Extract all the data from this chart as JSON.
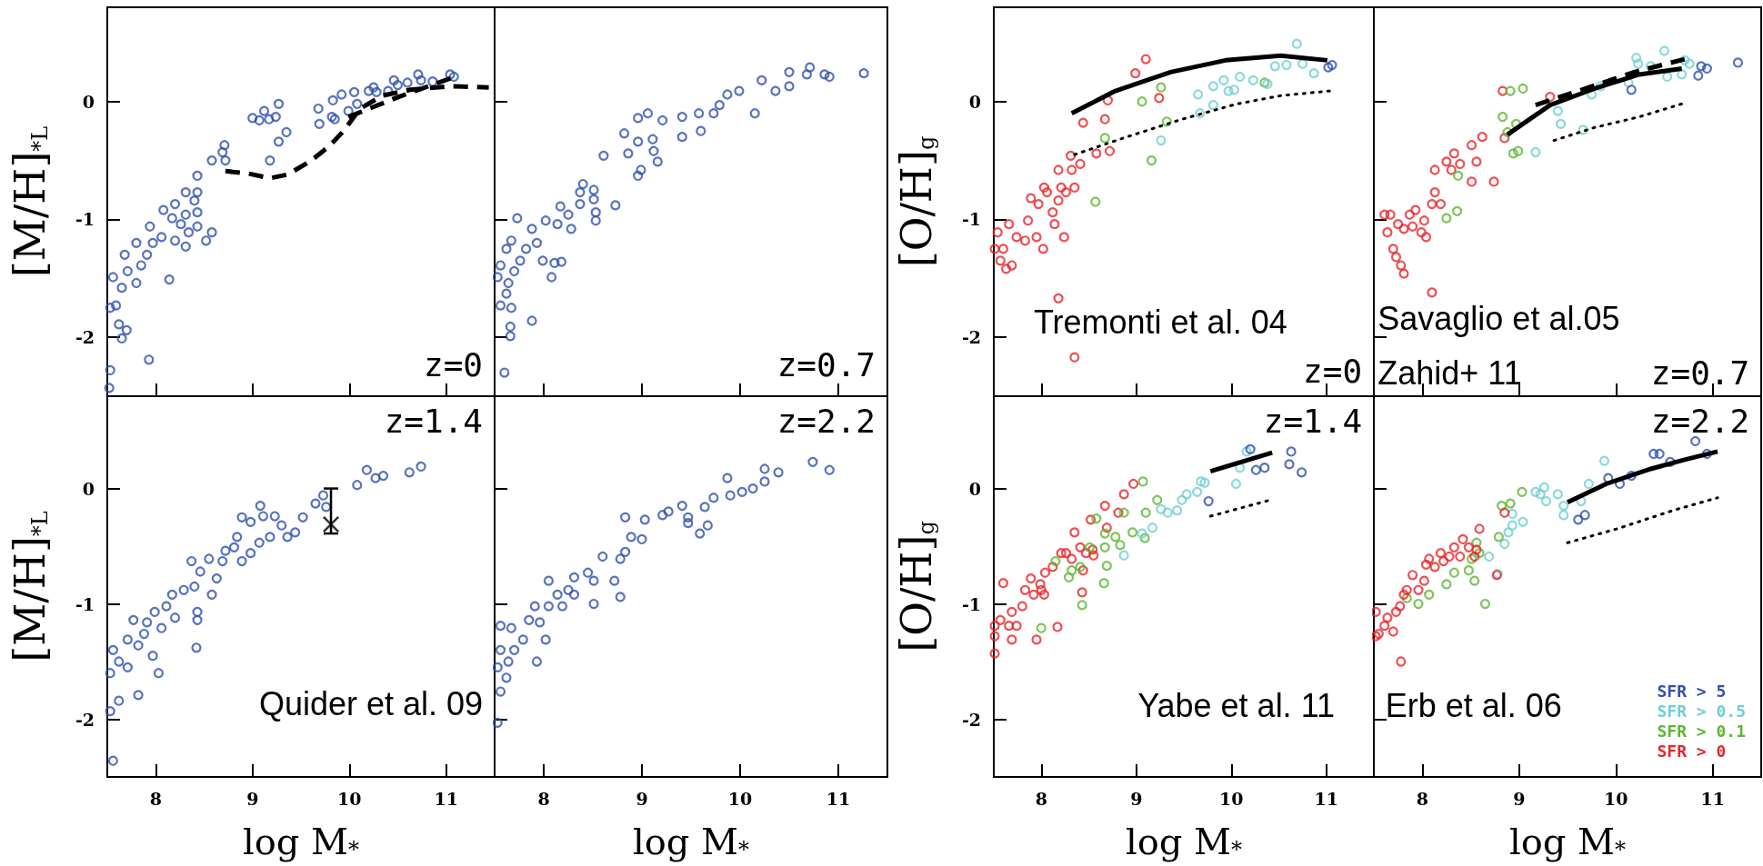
{
  "chart_data": [
    {
      "type": "scatter",
      "xlim": [
        7.5,
        11.5
      ],
      "ylim": [
        -2.5,
        0.8
      ],
      "xticks": [
        8,
        9,
        10,
        11
      ],
      "yticks": [
        -2,
        -1,
        0
      ],
      "tick_labels": "y",
      "marker": "circle",
      "ylabel": "[M/H]$_{*L}$",
      "annotations": [
        "z=0"
      ],
      "series": [
        {
          "type": "scatter",
          "color": "#3050b0",
          "x": [
            7.52,
            7.53,
            7.93,
            7.65,
            7.7,
            7.62,
            7.53,
            7.59,
            7.65,
            7.56,
            7.71,
            7.8,
            8.14,
            7.85,
            7.68,
            7.91,
            7.97,
            7.8,
            8.06,
            8.2,
            7.94,
            8.08,
            8.17,
            8.26,
            8.31,
            8.2,
            8.34,
            8.31,
            8.43,
            8.4,
            8.43,
            8.31,
            8.43,
            8.52,
            8.58,
            8.43,
            8.58,
            8.69,
            8.71,
            8.72,
            9.0,
            9.07,
            9.12,
            9.17,
            9.27,
            9.24,
            9.27,
            9.35,
            9.18,
            9.68,
            9.69,
            9.82,
            9.83,
            9.85,
            9.92,
            9.99,
            10.05,
            10.08,
            10.2,
            10.25,
            10.28,
            10.4,
            10.46,
            10.5,
            10.6,
            10.71,
            10.74,
            10.86,
            11.04,
            11.08
          ],
          "values": [
            -2.43,
            -2.28,
            -2.19,
            -2.01,
            -1.94,
            -1.89,
            -1.75,
            -1.73,
            -1.58,
            -1.49,
            -1.44,
            -1.54,
            -1.51,
            -1.39,
            -1.3,
            -1.3,
            -1.2,
            -1.2,
            -1.15,
            -1.18,
            -1.06,
            -0.92,
            -0.99,
            -1.04,
            -0.96,
            -0.87,
            -1.11,
            -1.23,
            -0.94,
            -0.84,
            -0.77,
            -0.77,
            -1.06,
            -1.18,
            -1.11,
            -0.63,
            -0.5,
            -0.43,
            -0.37,
            -0.5,
            -0.14,
            -0.16,
            -0.08,
            -0.15,
            -0.02,
            -0.13,
            -0.34,
            -0.26,
            -0.5,
            -0.06,
            -0.19,
            -0.13,
            0.01,
            -0.15,
            0.06,
            -0.08,
            0.08,
            -0.02,
            0.09,
            0.12,
            0.08,
            0.09,
            0.18,
            0.14,
            0.16,
            0.23,
            0.18,
            0.17,
            0.23,
            0.21
          ]
        },
        {
          "type": "line",
          "color": "#000000",
          "marker": "none",
          "line_style": "dashed",
          "x": [
            8.72,
            8.95,
            9.18,
            9.36,
            9.59,
            9.79,
            9.94,
            10.11,
            10.34,
            10.63,
            11.04,
            11.44
          ],
          "values": [
            -0.59,
            -0.61,
            -0.65,
            -0.62,
            -0.51,
            -0.38,
            -0.25,
            -0.06,
            0.05,
            0.1,
            0.13,
            0.12
          ]
        },
        {
          "type": "line",
          "color": "#000000",
          "marker": "none",
          "line_style": "dashed",
          "x": [
            9.99,
            10.51,
            11.09
          ],
          "values": [
            -0.13,
            0.04,
            0.21
          ]
        }
      ]
    },
    {
      "type": "scatter",
      "xlim": [
        7.5,
        11.5
      ],
      "ylim": [
        -2.5,
        0.8
      ],
      "xticks": [
        8,
        9,
        10,
        11
      ],
      "yticks": [
        -2,
        -1,
        0
      ],
      "tick_labels": false,
      "marker": "circle",
      "annotations": [
        "z=0.7"
      ],
      "series": [
        {
          "type": "scatter",
          "color": "#3050b0",
          "x": [
            7.6,
            7.66,
            7.66,
            7.88,
            7.56,
            7.62,
            7.67,
            7.53,
            7.56,
            7.64,
            7.7,
            7.76,
            7.62,
            7.67,
            7.82,
            7.73,
            7.88,
            7.93,
            7.99,
            8.08,
            8.11,
            8.18,
            8.02,
            8.14,
            8.17,
            8.25,
            8.28,
            8.37,
            8.4,
            8.37,
            8.51,
            8.51,
            8.53,
            8.53,
            8.61,
            8.73,
            8.82,
            8.86,
            8.96,
            8.96,
            8.96,
            8.99,
            9.11,
            9.12,
            9.16,
            9.06,
            9.21,
            9.41,
            9.41,
            9.58,
            9.6,
            9.73,
            9.79,
            9.87,
            9.99,
            10.15,
            10.22,
            10.36,
            10.5,
            10.5,
            10.68,
            10.71,
            10.86,
            10.91,
            11.26
          ],
          "values": [
            -2.3,
            -1.99,
            -1.91,
            -1.86,
            -1.73,
            -1.63,
            -1.75,
            -1.49,
            -1.39,
            -1.54,
            -1.44,
            -1.35,
            -1.25,
            -1.18,
            -1.25,
            -0.99,
            -1.08,
            -1.2,
            -1.35,
            -1.49,
            -1.37,
            -1.36,
            -1.01,
            -1.04,
            -0.89,
            -0.96,
            -1.08,
            -0.77,
            -0.7,
            -0.87,
            -0.75,
            -0.83,
            -0.94,
            -1.01,
            -0.46,
            -0.88,
            -0.27,
            -0.44,
            -0.34,
            -0.14,
            -0.63,
            -0.58,
            -0.32,
            -0.42,
            -0.51,
            -0.1,
            -0.16,
            -0.13,
            -0.3,
            -0.1,
            -0.25,
            -0.1,
            -0.03,
            0.06,
            0.09,
            -0.1,
            0.18,
            0.09,
            0.13,
            0.25,
            0.23,
            0.29,
            0.23,
            0.21,
            0.24
          ]
        }
      ]
    },
    {
      "type": "scatter",
      "xlim": [
        7.5,
        11.5
      ],
      "ylim": [
        -2.5,
        0.8
      ],
      "xticks": [
        8,
        9,
        10,
        11
      ],
      "yticks": [
        -2,
        -1,
        0
      ],
      "tick_labels": "y",
      "marker": "circle",
      "ylabel": "[O/H]$_{g}$",
      "annotations": [
        "Tremonti et al. 04",
        "z=0"
      ],
      "series": [
        {
          "type": "scatter",
          "color": "#e8262a",
          "x": [
            8.35,
            8.18,
            7.54,
            7.51,
            7.57,
            7.63,
            7.69,
            7.6,
            7.66,
            7.74,
            7.83,
            7.95,
            8.02,
            7.86,
            7.89,
            7.97,
            8.06,
            8.03,
            8.12,
            8.18,
            8.14,
            8.24,
            8.21,
            8.18,
            8.26,
            8.32,
            8.35,
            8.31,
            8.41,
            8.44,
            8.58,
            8.67,
            8.72,
            8.7,
            8.99,
            9.1,
            9.24
          ],
          "values": [
            -2.17,
            -1.67,
            -1.11,
            -1.25,
            -1.35,
            -1.42,
            -1.39,
            -1.25,
            -1.04,
            -1.15,
            -1.18,
            -1.15,
            -1.25,
            -1.01,
            -0.82,
            -0.87,
            -0.77,
            -0.73,
            -0.94,
            -0.84,
            -1.04,
            -1.15,
            -0.73,
            -0.58,
            -0.77,
            -0.58,
            -0.73,
            -0.46,
            -0.53,
            -0.18,
            -0.44,
            -0.15,
            -0.42,
            0.01,
            0.24,
            0.36,
            0.03
          ]
        },
        {
          "type": "scatter",
          "color": "#5cb832",
          "x": [
            8.67,
            8.57,
            9.06,
            9.26,
            9.32,
            9.16,
            10.35
          ],
          "values": [
            -0.31,
            -0.85,
            0.0,
            0.12,
            -0.17,
            -0.5,
            0.16
          ]
        },
        {
          "type": "scatter",
          "color": "#6fcfd3",
          "x": [
            9.26,
            9.67,
            9.65,
            9.81,
            9.81,
            9.92,
            9.97,
            10.03,
            10.09,
            10.23,
            10.38,
            10.46,
            10.58,
            10.69,
            10.75,
            10.87
          ],
          "values": [
            -0.33,
            -0.1,
            0.06,
            -0.03,
            0.13,
            0.18,
            0.09,
            0.1,
            0.21,
            0.18,
            0.15,
            0.3,
            0.31,
            0.49,
            0.32,
            0.24
          ]
        },
        {
          "type": "scatter",
          "color": "#3050b0",
          "x": [
            11.02,
            11.06
          ],
          "values": [
            0.29,
            0.31
          ]
        },
        {
          "type": "line",
          "color": "#000000",
          "marker": "none",
          "line_style": "solid",
          "x": [
            8.32,
            8.78,
            9.36,
            9.94,
            10.52,
            11.01
          ],
          "values": [
            -0.1,
            0.09,
            0.25,
            0.35,
            0.39,
            0.35
          ]
        },
        {
          "type": "line",
          "color": "#000000",
          "marker": "none",
          "line_style": "dotted",
          "x": [
            8.35,
            8.9,
            9.48,
            10.06,
            10.52,
            11.04
          ],
          "values": [
            -0.45,
            -0.3,
            -0.15,
            -0.02,
            0.05,
            0.09
          ]
        }
      ]
    },
    {
      "type": "scatter",
      "xlim": [
        7.5,
        11.5
      ],
      "ylim": [
        -2.5,
        0.8
      ],
      "xticks": [
        8,
        9,
        10,
        11
      ],
      "yticks": [
        -2,
        -1,
        0
      ],
      "tick_labels": false,
      "marker": "circle",
      "annotations": [
        "Savaglio et al.05",
        "Zahid+ 11",
        "z=0.7"
      ],
      "series": [
        {
          "type": "scatter",
          "color": "#e8262a",
          "x": [
            8.1,
            7.61,
            7.64,
            7.7,
            7.73,
            7.78,
            7.81,
            7.67,
            7.75,
            7.81,
            7.9,
            7.87,
            7.93,
            7.99,
            8.04,
            8.02,
            8.1,
            8.13,
            8.19,
            8.13,
            8.25,
            8.3,
            8.33,
            8.39,
            8.51,
            8.56,
            8.51,
            8.62,
            8.74,
            8.83,
            8.85,
            9.32
          ],
          "values": [
            -1.62,
            -0.96,
            -1.11,
            -1.25,
            -1.32,
            -1.39,
            -1.46,
            -0.96,
            -1.04,
            -1.08,
            -1.06,
            -0.96,
            -0.92,
            -1.11,
            -1.15,
            -1.01,
            -0.87,
            -0.77,
            -0.87,
            -0.58,
            -0.51,
            -0.58,
            -0.44,
            -0.53,
            -0.68,
            -0.51,
            -0.37,
            -0.3,
            -0.68,
            0.09,
            -0.31,
            0.04
          ]
        },
        {
          "type": "scatter",
          "color": "#5cb832",
          "x": [
            8.25,
            8.36,
            8.37,
            8.83,
            8.91,
            9.04,
            8.97,
            8.88,
            8.94,
            8.99
          ],
          "values": [
            -0.99,
            -0.93,
            -0.63,
            -0.13,
            0.09,
            0.11,
            -0.19,
            -0.26,
            -0.44,
            -0.42
          ]
        },
        {
          "type": "scatter",
          "color": "#6fcfd3",
          "x": [
            9.17,
            9.43,
            9.4,
            9.52,
            9.66,
            9.75,
            9.84,
            9.98,
            10.13,
            10.21,
            10.23,
            10.36,
            10.5,
            10.53,
            10.68,
            10.71,
            10.76
          ],
          "values": [
            -0.43,
            -0.19,
            -0.08,
            null,
            -0.24,
            0.06,
            0.13,
            null,
            0.16,
            0.37,
            0.32,
            0.3,
            0.43,
            0.21,
            0.23,
            0.35,
            0.32
          ]
        },
        {
          "type": "scatter",
          "color": "#3050b0",
          "x": [
            10.16,
            10.85,
            10.88,
            10.94,
            11.26
          ],
          "values": [
            0.1,
            0.22,
            0.3,
            0.28,
            0.33
          ]
        },
        {
          "type": "line",
          "color": "#000000",
          "marker": "none",
          "line_style": "dashed",
          "x": [
            9.17,
            9.72,
            10.19,
            10.71
          ],
          "values": [
            -0.03,
            0.12,
            0.25,
            0.36
          ]
        },
        {
          "type": "line",
          "color": "#000000",
          "marker": "none",
          "line_style": "solid",
          "x": [
            8.88,
            9.32,
            9.78,
            10.24,
            10.68
          ],
          "values": [
            -0.28,
            -0.03,
            0.11,
            0.23,
            0.28
          ]
        },
        {
          "type": "line",
          "color": "#000000",
          "marker": "none",
          "line_style": "dotted",
          "x": [
            9.36,
            9.78,
            10.24,
            10.68
          ],
          "values": [
            -0.33,
            -0.22,
            -0.13,
            -0.02
          ]
        }
      ]
    },
    {
      "type": "scatter",
      "xlim": [
        7.5,
        11.5
      ],
      "ylim": [
        -2.5,
        0.8
      ],
      "xticks": [
        8,
        9,
        10,
        11
      ],
      "yticks": [
        -2,
        -1,
        0
      ],
      "marker": "circle",
      "xlabel": "log M$_{*}$",
      "ylabel": "[M/H]$_{*L}$",
      "annotations": [
        "z=1.4",
        "Quider et al. 09"
      ],
      "series": [
        {
          "type": "scatter",
          "color": "#3050b0",
          "x": [
            7.56,
            7.53,
            7.62,
            7.82,
            7.53,
            7.62,
            7.71,
            8.03,
            7.56,
            7.71,
            7.82,
            7.88,
            7.97,
            7.77,
            7.91,
            7.99,
            8.11,
            8.06,
            8.2,
            8.17,
            8.29,
            8.4,
            8.43,
            8.43,
            8.42,
            8.37,
            8.46,
            8.55,
            8.58,
            8.63,
            8.69,
            8.72,
            8.84,
            8.81,
            8.89,
            8.89,
            8.98,
            8.98,
            9.07,
            9.08,
            9.11,
            9.23,
            9.18,
            9.3,
            9.36,
            9.44,
            9.52,
            9.65,
            9.73,
            9.76,
            10.08,
            10.18,
            10.27,
            10.35,
            10.62,
            10.74
          ],
          "values": [
            -2.36,
            -1.93,
            -1.84,
            -1.79,
            -1.6,
            -1.5,
            -1.55,
            -1.6,
            -1.4,
            -1.31,
            -1.36,
            -1.26,
            -1.45,
            -1.14,
            -1.16,
            -1.07,
            -1.02,
            -1.21,
            -1.12,
            -0.92,
            -0.88,
            -0.85,
            -1.07,
            -1.14,
            -1.38,
            -0.63,
            -0.72,
            -0.61,
            -0.92,
            -0.78,
            -0.63,
            -0.54,
            -0.42,
            -0.51,
            -0.63,
            -0.25,
            -0.56,
            -0.29,
            -0.47,
            -0.15,
            -0.24,
            -0.24,
            -0.42,
            -0.32,
            -0.42,
            -0.38,
            -0.25,
            -0.13,
            -0.06,
            -0.16,
            0.03,
            0.16,
            0.09,
            0.11,
            0.14,
            0.19
          ]
        },
        {
          "type": "scatter",
          "color": "#000000",
          "marker": "cross",
          "x": [
            9.81
          ],
          "values": [
            -0.31
          ],
          "errors": [
            [
              -0.39,
              0.0
            ]
          ]
        }
      ]
    },
    {
      "type": "scatter",
      "xlim": [
        7.5,
        11.5
      ],
      "ylim": [
        -2.5,
        0.8
      ],
      "xticks": [
        8,
        9,
        10,
        11
      ],
      "yticks": [
        -2,
        -1,
        0
      ],
      "tick_labels": "x",
      "marker": "circle",
      "xlabel": "log M$_{*}$",
      "annotations": [
        "z=2.2"
      ],
      "series": [
        {
          "type": "scatter",
          "color": "#3050b0",
          "x": [
            7.53,
            7.56,
            7.62,
            7.53,
            7.64,
            7.56,
            7.7,
            7.79,
            7.93,
            7.67,
            7.85,
            7.96,
            8.02,
            7.56,
            7.91,
            8.05,
            8.14,
            8.19,
            8.05,
            8.25,
            8.31,
            8.31,
            8.45,
            8.51,
            8.51,
            8.6,
            8.72,
            8.78,
            8.78,
            8.83,
            8.83,
            8.89,
            9.0,
            9.03,
            9.21,
            9.27,
            9.41,
            9.47,
            9.47,
            9.59,
            9.67,
            9.64,
            9.73,
            9.87,
            9.9,
            10.02,
            10.13,
            10.25,
            10.25,
            10.39,
            10.74,
            10.91
          ],
          "values": [
            -2.03,
            -1.76,
            -1.64,
            -1.55,
            -1.5,
            -1.4,
            -1.4,
            -1.31,
            -1.5,
            -1.21,
            -1.14,
            -1.16,
            -1.31,
            -1.19,
            -1.02,
            -1.02,
            -0.92,
            -1.02,
            -0.8,
            -0.88,
            -0.92,
            -0.77,
            -0.73,
            -0.8,
            -1.0,
            -0.59,
            -0.8,
            -0.94,
            -0.61,
            -0.55,
            -0.25,
            -0.42,
            -0.44,
            -0.27,
            -0.23,
            -0.2,
            -0.15,
            -0.25,
            -0.3,
            -0.39,
            -0.32,
            -0.16,
            -0.08,
            0.09,
            -0.06,
            -0.03,
            0.0,
            0.17,
            0.06,
            0.14,
            0.23,
            0.16
          ]
        }
      ]
    },
    {
      "type": "scatter",
      "xlim": [
        7.5,
        11.5
      ],
      "ylim": [
        -2.5,
        0.8
      ],
      "xticks": [
        8,
        9,
        10,
        11
      ],
      "yticks": [
        -2,
        -1,
        0
      ],
      "marker": "circle",
      "xlabel": "log M$_{*}$",
      "ylabel": "[O/H]$_{g}$",
      "annotations": [
        "z=1.4",
        "Yabe et al. 11"
      ],
      "series": [
        {
          "type": "scatter",
          "color": "#e8262a",
          "x": [
            7.51,
            7.51,
            7.51,
            7.6,
            7.57,
            7.66,
            7.69,
            7.74,
            7.69,
            7.8,
            7.83,
            7.89,
            7.92,
            7.95,
            8.0,
            7.99,
            8.04,
            8.03,
            8.12,
            8.17,
            8.21,
            8.26,
            8.32,
            8.35,
            8.41,
            8.47,
            8.43,
            8.44,
            8.54,
            8.52,
            8.55,
            8.67,
            8.69,
            8.81,
            8.87,
            8.97
          ],
          "values": [
            -1.43,
            -1.28,
            -1.19,
            -0.82,
            -1.14,
            -1.19,
            -1.31,
            -1.19,
            -1.07,
            -1.02,
            -0.88,
            -0.78,
            -0.92,
            -1.31,
            -0.88,
            -0.83,
            -0.73,
            -0.92,
            -0.68,
            -1.2,
            -0.56,
            -0.56,
            -0.61,
            -0.38,
            -0.51,
            -0.56,
            -0.9,
            -0.71,
            -0.53,
            -0.27,
            -0.58,
            -0.15,
            -0.34,
            -0.21,
            -0.05,
            0.04
          ]
        },
        {
          "type": "scatter",
          "color": "#5cb832",
          "x": [
            8.0,
            8.15,
            8.29,
            8.32,
            8.43,
            8.41,
            8.51,
            8.58,
            8.67,
            8.67,
            8.69,
            8.66,
            8.78,
            8.83,
            8.87,
            8.96,
            9.07,
            9.09,
            9.1,
            9.22
          ],
          "values": [
            -1.21,
            -0.63,
            -0.77,
            -0.71,
            -1.01,
            -0.68,
            -0.51,
            -0.26,
            -0.39,
            -0.51,
            -0.67,
            -0.82,
            -0.42,
            -0.49,
            -0.21,
            -0.38,
            0.06,
            -0.43,
            -0.21,
            -0.1
          ]
        },
        {
          "type": "scatter",
          "color": "#6fcfd3",
          "x": [
            8.87,
            9.06,
            9.17,
            9.26,
            9.33,
            9.43,
            9.48,
            9.53,
            9.64,
            9.68,
            9.72,
            10.05,
            10.09,
            10.16
          ],
          "values": [
            -0.58,
            -0.39,
            -0.34,
            -0.18,
            -0.21,
            -0.19,
            -0.1,
            -0.05,
            -0.03,
            0.06,
            0.05,
            0.04,
            0.18,
            0.32
          ]
        },
        {
          "type": "scatter",
          "color": "#3050b0",
          "x": [
            9.76,
            10.2,
            10.26,
            10.35,
            10.63,
            10.61,
            10.74
          ],
          "values": [
            -0.11,
            0.34,
            0.16,
            0.18,
            0.32,
            0.21,
            0.14
          ]
        },
        {
          "type": "line",
          "color": "#000000",
          "marker": "none",
          "line_style": "solid",
          "x": [
            9.78,
            10.43
          ],
          "values": [
            0.15,
            0.31
          ]
        },
        {
          "type": "line",
          "color": "#000000",
          "marker": "none",
          "line_style": "dotted",
          "x": [
            9.78,
            10.41
          ],
          "values": [
            -0.24,
            -0.1
          ]
        }
      ]
    },
    {
      "type": "scatter",
      "xlim": [
        7.5,
        11.5
      ],
      "ylim": [
        -2.5,
        0.8
      ],
      "xticks": [
        8,
        9,
        10,
        11
      ],
      "yticks": [
        -2,
        -1,
        0
      ],
      "tick_labels": "x",
      "marker": "circle",
      "xlabel": "log M$_{*}$",
      "legend": "bottom right",
      "annotations": [
        "z=2.2",
        "Erb et al. 06"
      ],
      "series": [
        {
          "type": "scatter",
          "name": "SFR > 5",
          "color": "#3050b0",
          "x": [
            9.61,
            9.68,
            9.92,
            10.04,
            10.16,
            10.39,
            10.45,
            10.56,
            10.82,
            10.94
          ],
          "values": [
            -0.27,
            -0.23,
            0.09,
            0.04,
            0.11,
            0.3,
            0.3,
            0.23,
            0.41,
            0.3
          ]
        },
        {
          "type": "scatter",
          "name": "SFR > 0.5",
          "color": "#6fcfd3",
          "x": [
            8.69,
            8.78,
            8.85,
            8.89,
            8.93,
            8.93,
            9.04,
            9.17,
            9.22,
            9.26,
            9.28,
            9.4,
            9.46,
            9.46,
            9.64,
            9.72,
            9.88
          ],
          "values": [
            -0.59,
            -0.74,
            -0.48,
            -0.38,
            -0.32,
            -0.22,
            -0.29,
            -0.03,
            -0.05,
            0.01,
            -0.11,
            -0.05,
            -0.15,
            -0.23,
            -0.11,
            0.04,
            0.24
          ]
        },
        {
          "type": "scatter",
          "name": "SFR > 0.1",
          "color": "#5cb832",
          "x": [
            7.84,
            7.96,
            8.07,
            8.25,
            8.33,
            8.48,
            8.54,
            8.51,
            8.59,
            8.65,
            8.79,
            8.82,
            8.91,
            9.03,
            8.56
          ],
          "values": [
            -0.95,
            -1.0,
            -0.92,
            -0.83,
            -0.73,
            -0.71,
            -0.8,
            -0.61,
            -0.56,
            -1.0,
            -0.42,
            -0.15,
            -0.13,
            -0.03,
            -0.47
          ]
        },
        {
          "type": "scatter",
          "name": "SFR > 0",
          "color": "#e8262a",
          "x": [
            7.52,
            7.52,
            7.55,
            7.61,
            7.7,
            7.64,
            7.78,
            7.73,
            7.77,
            7.81,
            7.84,
            7.9,
            7.96,
            8.02,
            8.04,
            8.07,
            8.13,
            8.19,
            8.22,
            8.28,
            8.33,
            8.39,
            8.42,
            8.48,
            8.54,
            8.59,
            8.56,
            8.77,
            8.85
          ],
          "values": [
            -1.07,
            -1.28,
            -1.26,
            -1.19,
            -1.24,
            -1.12,
            -1.5,
            -1.07,
            -1.02,
            -0.92,
            -0.88,
            -0.75,
            -0.88,
            -0.8,
            -0.66,
            -0.61,
            -0.68,
            -0.56,
            -0.63,
            -0.59,
            -0.51,
            -0.59,
            -0.44,
            -0.51,
            -0.59,
            -0.35,
            -0.53,
            -0.75,
            -0.21
          ]
        },
        {
          "type": "line",
          "color": "#000000",
          "marker": "none",
          "line_style": "solid",
          "x": [
            9.5,
            9.9,
            10.36,
            10.71,
            11.05
          ],
          "values": [
            -0.12,
            0.04,
            0.17,
            0.25,
            0.32
          ]
        },
        {
          "type": "line",
          "color": "#000000",
          "marker": "none",
          "line_style": "dotted",
          "x": [
            9.5,
            10.01,
            10.59,
            11.05
          ],
          "values": [
            -0.47,
            -0.35,
            -0.19,
            -0.08
          ]
        }
      ]
    }
  ]
}
